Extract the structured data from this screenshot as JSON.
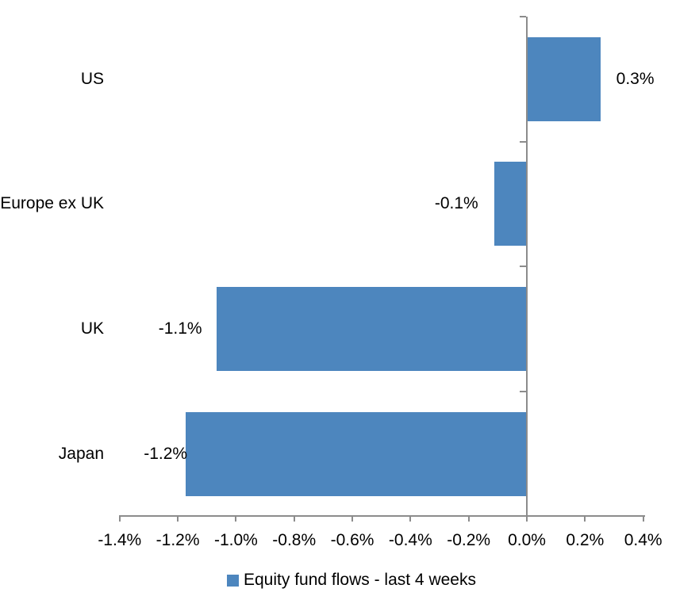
{
  "chart_data": {
    "type": "bar",
    "orientation": "horizontal",
    "categories": [
      "US",
      "Europe ex UK",
      "UK",
      "Japan"
    ],
    "values": [
      0.3,
      -0.1,
      -1.1,
      -1.2
    ],
    "value_labels": [
      "0.3%",
      "-0.1%",
      "-1.1%",
      "-1.2%"
    ],
    "plotted_values_pct": [
      0.25,
      -0.11,
      -1.065,
      -1.17
    ],
    "series_name": "Equity fund flows - last 4 weeks",
    "x_axis": {
      "min": -1.4,
      "max": 0.4,
      "step": 0.2,
      "tick_labels": [
        "-1.4%",
        "-1.2%",
        "-1.0%",
        "-0.8%",
        "-0.6%",
        "-0.4%",
        "-0.2%",
        "0.0%",
        "0.2%",
        "0.4%"
      ]
    },
    "grid": false,
    "legend_position": "bottom-center",
    "colors": {
      "bar": "#4D86BE",
      "axis": "#8C8C8C",
      "text": "#000000",
      "background": "#FFFFFF"
    }
  }
}
